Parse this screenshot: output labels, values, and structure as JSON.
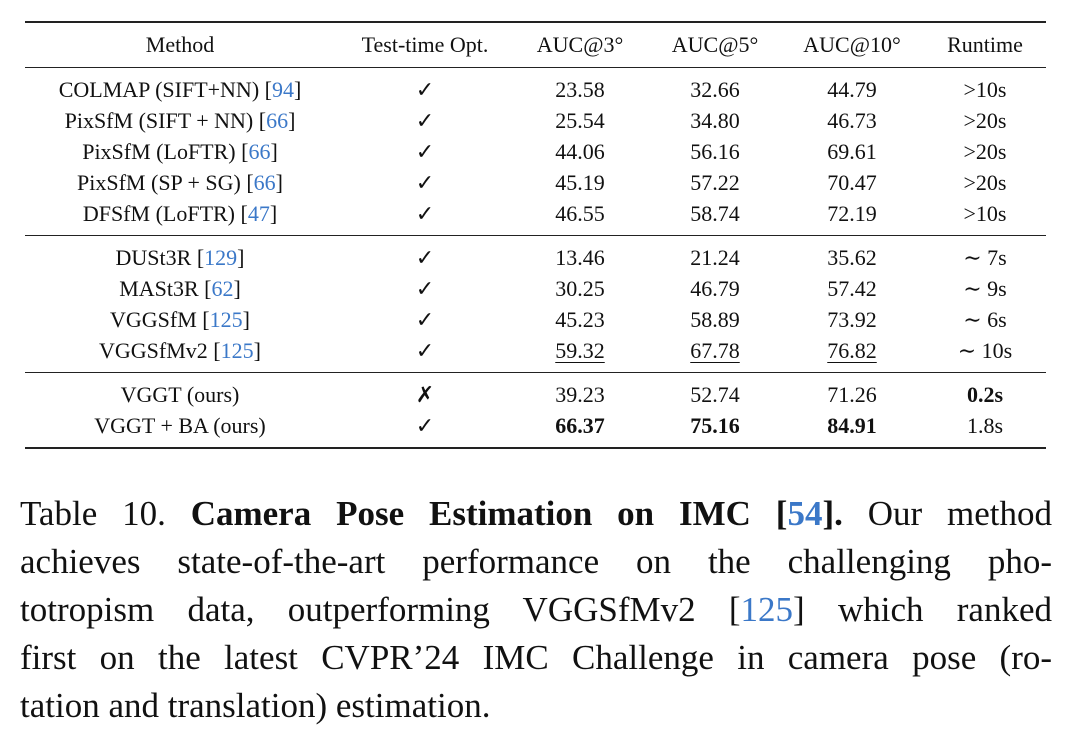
{
  "table": {
    "headers": [
      "Method",
      "Test-time Opt.",
      "AUC@3°",
      "AUC@5°",
      "AUC@10°",
      "Runtime"
    ],
    "groups": [
      [
        {
          "method": "COLMAP (SIFT+NN) [",
          "ref": "94",
          "close": "]",
          "opt": "✓",
          "auc3": "23.58",
          "auc5": "32.66",
          "auc10": "44.79",
          "runtime": ">10s"
        },
        {
          "method": "PixSfM (SIFT + NN) [",
          "ref": "66",
          "close": "]",
          "opt": "✓",
          "auc3": "25.54",
          "auc5": "34.80",
          "auc10": "46.73",
          "runtime": ">20s"
        },
        {
          "method": "PixSfM (LoFTR) [",
          "ref": "66",
          "close": "]",
          "opt": "✓",
          "auc3": "44.06",
          "auc5": "56.16",
          "auc10": "69.61",
          "runtime": ">20s"
        },
        {
          "method": "PixSfM (SP + SG) [",
          "ref": "66",
          "close": "]",
          "opt": "✓",
          "auc3": "45.19",
          "auc5": "57.22",
          "auc10": "70.47",
          "runtime": ">20s"
        },
        {
          "method": "DFSfM (LoFTR) [",
          "ref": "47",
          "close": "]",
          "opt": "✓",
          "auc3": "46.55",
          "auc5": "58.74",
          "auc10": "72.19",
          "runtime": ">10s"
        }
      ],
      [
        {
          "method": "DUSt3R [",
          "ref": "129",
          "close": "]",
          "opt": "✓",
          "auc3": "13.46",
          "auc5": "21.24",
          "auc10": "35.62",
          "runtime": "∼ 7s"
        },
        {
          "method": "MASt3R [",
          "ref": "62",
          "close": "]",
          "opt": "✓",
          "auc3": "30.25",
          "auc5": "46.79",
          "auc10": "57.42",
          "runtime": "∼ 9s"
        },
        {
          "method": "VGGSfM [",
          "ref": "125",
          "close": "]",
          "opt": "✓",
          "auc3": "45.23",
          "auc5": "58.89",
          "auc10": "73.92",
          "runtime": "∼ 6s"
        },
        {
          "method": "VGGSfMv2 [",
          "ref": "125",
          "close": "]",
          "opt": "✓",
          "auc3": "59.32",
          "auc5": "67.78",
          "auc10": "76.82",
          "runtime": "∼ 10s",
          "underline_auc": true
        }
      ],
      [
        {
          "method": "VGGT (ours)",
          "ref": "",
          "close": "",
          "opt": "✗",
          "auc3": "39.23",
          "auc5": "52.74",
          "auc10": "71.26",
          "runtime": "0.2s",
          "bold_runtime": true
        },
        {
          "method": "VGGT + BA (ours)",
          "ref": "",
          "close": "",
          "opt": "✓",
          "auc3": "66.37",
          "auc5": "75.16",
          "auc10": "84.91",
          "runtime": "1.8s",
          "bold_auc": true
        }
      ]
    ]
  },
  "caption": {
    "label": "Table 10.",
    "title_pre": "Camera Pose Estimation on IMC [",
    "title_ref": "54",
    "title_post": "].",
    "line1_rest": "Our method",
    "line2": "achieves state-of-the-art performance on the challenging pho-",
    "line3_pre": "totropism data, outperforming VGGSfMv2 [",
    "line3_ref": "125",
    "line3_post": "] which ranked",
    "line4": "first on the latest CVPR’24 IMC Challenge in camera pose (ro-",
    "line5": "tation and translation) estimation."
  },
  "colors": {
    "link": "#3b78c8",
    "text": "#111111"
  }
}
